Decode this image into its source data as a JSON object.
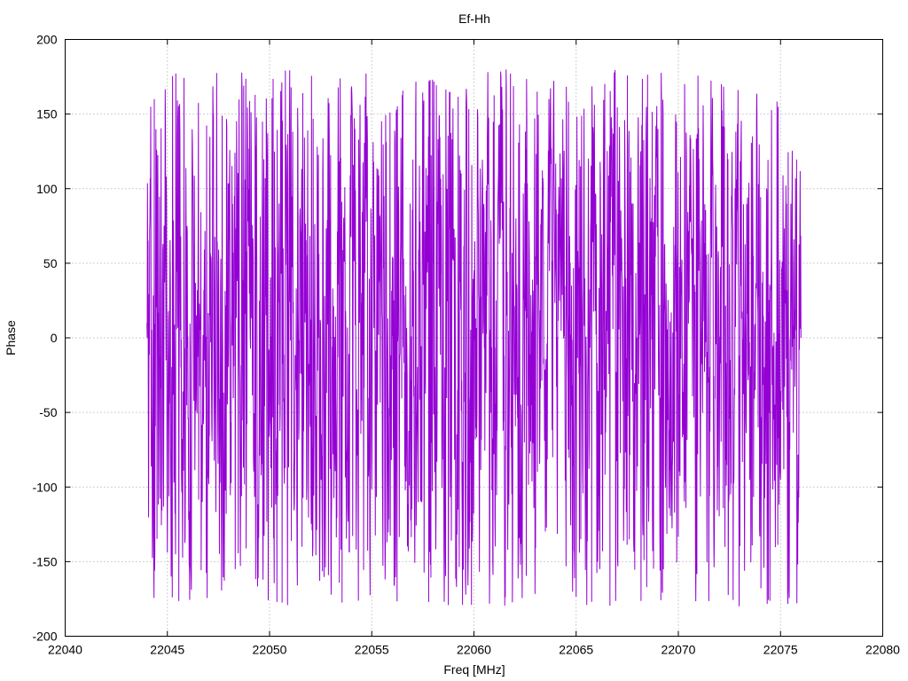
{
  "chart_data": {
    "type": "line",
    "title": "Ef-Hh",
    "xlabel": "Freq [MHz]",
    "ylabel": "Phase",
    "xlim": [
      22040,
      22080
    ],
    "ylim": [
      -200,
      200
    ],
    "xticks": [
      22040,
      22045,
      22050,
      22055,
      22060,
      22065,
      22070,
      22075,
      22080
    ],
    "yticks": [
      -200,
      -150,
      -100,
      -50,
      0,
      50,
      100,
      150,
      200
    ],
    "xtick_labels": [
      "22040",
      "22045",
      "22050",
      "22055",
      "22060",
      "22065",
      "22070",
      "22075",
      "22080"
    ],
    "ytick_labels": [
      "-200",
      "-150",
      "-100",
      "-50",
      "0",
      "50",
      "100",
      "150",
      "200"
    ],
    "grid": true,
    "legend": false,
    "series": [
      {
        "color": "#9400d3",
        "x_range": [
          22044,
          22076
        ],
        "approx_num_points": 2400,
        "y_range": [
          -180,
          180
        ],
        "points": [
          [
            22044.0,
            10
          ],
          [
            22044.1,
            -150
          ],
          [
            22044.2,
            20
          ],
          [
            22044.3,
            -110
          ],
          [
            22044.4,
            -20
          ],
          [
            22044.5,
            90
          ],
          [
            22044.6,
            -50
          ],
          [
            22044.7,
            140
          ],
          [
            22044.8,
            -30
          ],
          [
            22044.9,
            170
          ],
          [
            22045.0,
            -130
          ],
          [
            22045.2,
            60
          ],
          [
            22045.4,
            -100
          ],
          [
            22045.6,
            150
          ],
          [
            22045.8,
            -170
          ],
          [
            22046.0,
            80
          ],
          [
            22046.3,
            -60
          ],
          [
            22046.6,
            170
          ],
          [
            22046.9,
            -140
          ],
          [
            22047.2,
            120
          ],
          [
            22047.5,
            -10
          ],
          [
            22047.8,
            -150
          ],
          [
            22048.1,
            40
          ],
          [
            22048.4,
            165
          ],
          [
            22048.7,
            -90
          ],
          [
            22049.0,
            110
          ],
          [
            22049.3,
            -160
          ],
          [
            22049.6,
            30
          ],
          [
            22049.9,
            175
          ],
          [
            22050.2,
            -175
          ],
          [
            22050.5,
            60
          ],
          [
            22050.8,
            -110
          ],
          [
            22051.1,
            150
          ],
          [
            22051.4,
            -40
          ],
          [
            22051.7,
            175
          ],
          [
            22052.0,
            -165
          ],
          [
            22052.3,
            20
          ],
          [
            22052.6,
            -120
          ],
          [
            22052.9,
            130
          ],
          [
            22053.2,
            -60
          ],
          [
            22053.5,
            160
          ],
          [
            22053.8,
            -150
          ],
          [
            22054.1,
            100
          ],
          [
            22054.4,
            -20
          ],
          [
            22054.7,
            170
          ],
          [
            22055.0,
            -130
          ],
          [
            22055.3,
            60
          ],
          [
            22055.6,
            -90
          ],
          [
            22055.9,
            140
          ],
          [
            22056.2,
            -175
          ],
          [
            22056.5,
            40
          ],
          [
            22056.8,
            -130
          ],
          [
            22057.1,
            110
          ],
          [
            22057.4,
            -50
          ],
          [
            22057.7,
            160
          ],
          [
            22058.0,
            -160
          ],
          [
            22058.3,
            90
          ],
          [
            22058.6,
            -20
          ],
          [
            22058.9,
            155
          ],
          [
            22059.2,
            -140
          ],
          [
            22059.5,
            30
          ],
          [
            22059.8,
            -150
          ],
          [
            22060.1,
            120
          ],
          [
            22060.4,
            -70
          ],
          [
            22060.7,
            170
          ],
          [
            22061.0,
            -120
          ],
          [
            22061.3,
            70
          ],
          [
            22061.6,
            -100
          ],
          [
            22061.9,
            165
          ],
          [
            22062.2,
            -165
          ],
          [
            22062.5,
            50
          ],
          [
            22062.8,
            -40
          ],
          [
            22063.1,
            150
          ],
          [
            22063.4,
            -170
          ],
          [
            22063.7,
            100
          ],
          [
            22064.0,
            -80
          ],
          [
            22064.3,
            160
          ],
          [
            22064.6,
            -150
          ],
          [
            22064.9,
            20
          ],
          [
            22065.2,
            175
          ],
          [
            22065.5,
            -100
          ],
          [
            22065.8,
            90
          ],
          [
            22066.1,
            -140
          ],
          [
            22066.4,
            130
          ],
          [
            22066.7,
            -30
          ],
          [
            22067.0,
            170
          ],
          [
            22067.3,
            -175
          ],
          [
            22067.6,
            60
          ],
          [
            22067.9,
            -120
          ],
          [
            22068.2,
            150
          ],
          [
            22068.5,
            -60
          ],
          [
            22068.8,
            160
          ],
          [
            22069.1,
            -150
          ],
          [
            22069.4,
            80
          ],
          [
            22069.7,
            -20
          ],
          [
            22070.0,
            170
          ],
          [
            22070.3,
            -170
          ],
          [
            22070.6,
            40
          ],
          [
            22070.9,
            -130
          ],
          [
            22071.2,
            160
          ],
          [
            22071.5,
            -80
          ],
          [
            22071.8,
            120
          ],
          [
            22072.1,
            -160
          ],
          [
            22072.4,
            30
          ],
          [
            22072.7,
            165
          ],
          [
            22073.0,
            -120
          ],
          [
            22073.3,
            70
          ],
          [
            22073.6,
            -150
          ],
          [
            22073.9,
            130
          ],
          [
            22074.2,
            -40
          ],
          [
            22074.5,
            160
          ],
          [
            22074.8,
            -170
          ],
          [
            22075.1,
            90
          ],
          [
            22075.4,
            -110
          ],
          [
            22075.7,
            150
          ],
          [
            22076.0,
            0
          ]
        ]
      }
    ]
  }
}
